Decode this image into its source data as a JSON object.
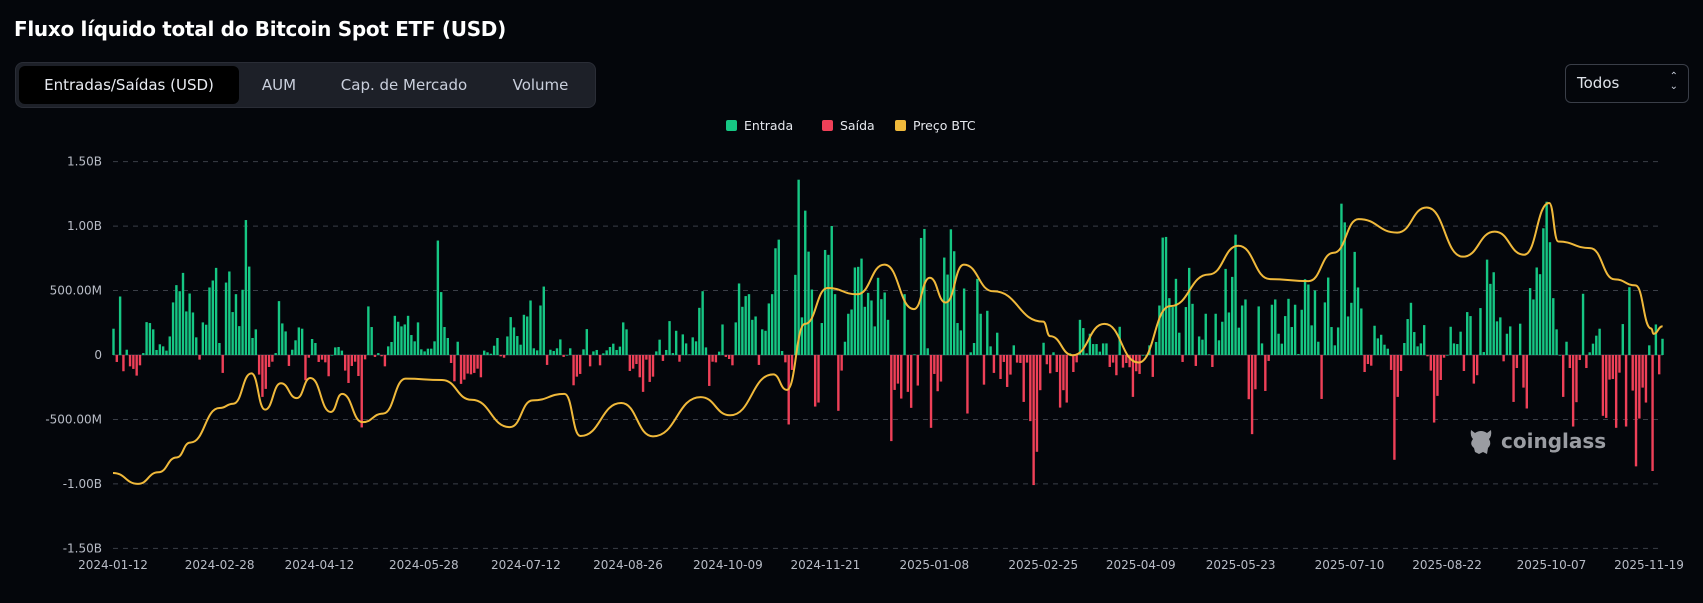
{
  "title": "Fluxo líquido total do Bitcoin Spot ETF (USD)",
  "tabs": [
    {
      "label": "Entradas/Saídas (USD)",
      "active": true
    },
    {
      "label": "AUM",
      "active": false
    },
    {
      "label": "Cap. de Mercado",
      "active": false
    },
    {
      "label": "Volume",
      "active": false
    }
  ],
  "range_select": {
    "value": "Todos",
    "icon": "updown-chevron-icon"
  },
  "watermark": "coinglass",
  "colors": {
    "inflow": "#16c784",
    "outflow": "#ef4058",
    "price": "#f0b93b",
    "background": "#04060b",
    "grid": "#3b3f48"
  },
  "chart_data": {
    "type": "bar+line",
    "title": "",
    "legend": {
      "placement": "top-center",
      "items": [
        "Entrada",
        "Saída",
        "Preço BTC"
      ]
    },
    "grid": true,
    "y_axis": {
      "unit": "USD",
      "ylim": [
        -1500000000,
        1500000000
      ],
      "ticks": [
        {
          "value": 1500000000,
          "label": "1.50B"
        },
        {
          "value": 1000000000,
          "label": "1.00B"
        },
        {
          "value": 500000000,
          "label": "500.00M"
        },
        {
          "value": 0,
          "label": "0"
        },
        {
          "value": -500000000,
          "label": "-500.00M"
        },
        {
          "value": -1000000000,
          "label": "-1.00B"
        },
        {
          "value": -1500000000,
          "label": "-1.50B"
        }
      ]
    },
    "x_axis": {
      "range": [
        "2024-01-11",
        "2025-11-25"
      ],
      "ticks": [
        "2024-01-12",
        "2024-02-28",
        "2024-04-12",
        "2024-05-28",
        "2024-07-12",
        "2024-08-26",
        "2024-10-09",
        "2024-11-21",
        "2025-01-08",
        "2025-02-25",
        "2025-04-09",
        "2025-05-23",
        "2025-07-10",
        "2025-08-22",
        "2025-10-07",
        "2025-11-19"
      ]
    },
    "flows_unit": "USD millions (daily, positive = Entrada, negative = Saída)",
    "flows": [
      204,
      -54,
      454,
      -126,
      41,
      -88,
      -108,
      -160,
      -80,
      15,
      255,
      248,
      199,
      39,
      83,
      67,
      34,
      144,
      408,
      542,
      495,
      637,
      338,
      477,
      330,
      137,
      -36,
      253,
      235,
      524,
      578,
      676,
      93,
      -139,
      562,
      648,
      333,
      472,
      224,
      506,
      1047,
      686,
      132,
      199,
      -152,
      -325,
      -263,
      -93,
      -52,
      15,
      418,
      245,
      183,
      -85,
      41,
      114,
      214,
      204,
      -196,
      -21,
      124,
      93,
      -54,
      -36,
      -57,
      -165,
      0,
      59,
      62,
      34,
      -121,
      -217,
      -85,
      -52,
      -163,
      -562,
      -34,
      377,
      217,
      -15,
      15,
      -10,
      -88,
      67,
      101,
      304,
      258,
      222,
      237,
      304,
      155,
      106,
      253,
      44,
      28,
      49,
      49,
      106,
      888,
      488,
      217,
      132,
      -62,
      -204,
      103,
      -224,
      -191,
      -144,
      -150,
      -139,
      -106,
      -173,
      34,
      21,
      10,
      72,
      132,
      -10,
      -21,
      144,
      294,
      214,
      147,
      80,
      312,
      299,
      423,
      52,
      36,
      384,
      531,
      -77,
      41,
      31,
      52,
      121,
      -15,
      0,
      52,
      -235,
      -168,
      -147,
      44,
      201,
      -88,
      28,
      39,
      -80,
      13,
      36,
      62,
      88,
      39,
      65,
      253,
      199,
      -124,
      -106,
      -70,
      -173,
      -286,
      -36,
      -209,
      -168,
      28,
      119,
      -46,
      39,
      263,
      15,
      188,
      -52,
      160,
      90,
      5,
      137,
      106,
      366,
      495,
      59,
      -240,
      -52,
      -57,
      26,
      237,
      -15,
      -31,
      -80,
      253,
      555,
      374,
      457,
      472,
      273,
      299,
      -77,
      199,
      188,
      400,
      472,
      828,
      895,
      31,
      -57,
      -539,
      -116,
      622,
      1360,
      292,
      1120,
      802,
      508,
      -400,
      -369,
      248,
      815,
      777,
      1001,
      472,
      -433,
      -121,
      103,
      320,
      353,
      679,
      684,
      748,
      374,
      482,
      423,
      222,
      599,
      433,
      485,
      273,
      -668,
      -271,
      -222,
      -338,
      472,
      -286,
      -410,
      5,
      -237,
      908,
      978,
      52,
      -565,
      -147,
      -281,
      -206,
      756,
      624,
      975,
      805,
      248,
      191,
      516,
      -454,
      21,
      93,
      591,
      320,
      -230,
      343,
      67,
      -139,
      173,
      -186,
      -54,
      -248,
      -152,
      75,
      -59,
      -62,
      -364,
      -59,
      -513,
      -1009,
      -751,
      -273,
      95,
      -72,
      -142,
      21,
      -132,
      -408,
      -273,
      -369,
      13,
      -132,
      -57,
      273,
      209,
      13,
      165,
      85,
      85,
      26,
      90,
      90,
      -93,
      -59,
      -157,
      219,
      -98,
      -62,
      -95,
      -325,
      -126,
      -147,
      0,
      0,
      75,
      -170,
      101,
      384,
      911,
      916,
      441,
      372,
      591,
      173,
      -54,
      372,
      676,
      397,
      -85,
      144,
      119,
      320,
      5,
      -93,
      320,
      114,
      258,
      668,
      330,
      606,
      934,
      212,
      384,
      431,
      -343,
      -614,
      -266,
      377,
      90,
      -279,
      -46,
      390,
      431,
      165,
      88,
      302,
      436,
      217,
      390,
      8,
      351,
      588,
      547,
      230,
      501,
      103,
      -341,
      408,
      601,
      217,
      75,
      214,
      1174,
      1029,
      299,
      405,
      800,
      524,
      361,
      -132,
      -70,
      -83,
      227,
      129,
      157,
      80,
      49,
      -116,
      -813,
      -325,
      -124,
      93,
      279,
      405,
      178,
      67,
      90,
      232,
      -10,
      -121,
      -524,
      -317,
      -194,
      -21,
      0,
      219,
      90,
      85,
      181,
      -124,
      333,
      302,
      -222,
      -157,
      364,
      23,
      740,
      552,
      642,
      261,
      292,
      -49,
      165,
      222,
      -364,
      -101,
      243,
      -253,
      -415,
      519,
      431,
      679,
      627,
      983,
      1189,
      875,
      441,
      199,
      0,
      -325,
      103,
      -101,
      -555,
      -366,
      -39,
      475,
      -101,
      21,
      88,
      150,
      204,
      -472,
      -488,
      -191,
      -186,
      -565,
      -137,
      240,
      -555,
      526,
      -276,
      -864,
      -493,
      -253,
      -369,
      75,
      -900,
      237,
      -150,
      126
    ],
    "btc_price": [
      [
        "2024-01-12",
        42800
      ],
      [
        "2024-01-23",
        39500
      ],
      [
        "2024-02-01",
        43000
      ],
      [
        "2024-02-09",
        47500
      ],
      [
        "2024-02-15",
        52000
      ],
      [
        "2024-02-28",
        62500
      ],
      [
        "2024-03-05",
        63800
      ],
      [
        "2024-03-13",
        73000
      ],
      [
        "2024-03-19",
        62000
      ],
      [
        "2024-03-26",
        70000
      ],
      [
        "2024-04-02",
        65500
      ],
      [
        "2024-04-08",
        71600
      ],
      [
        "2024-04-17",
        61300
      ],
      [
        "2024-04-22",
        66800
      ],
      [
        "2024-05-01",
        58200
      ],
      [
        "2024-05-10",
        60800
      ],
      [
        "2024-05-20",
        71400
      ],
      [
        "2024-06-05",
        71000
      ],
      [
        "2024-06-18",
        65000
      ],
      [
        "2024-07-05",
        56700
      ],
      [
        "2024-07-15",
        64800
      ],
      [
        "2024-07-29",
        66800
      ],
      [
        "2024-08-05",
        54000
      ],
      [
        "2024-08-23",
        64000
      ],
      [
        "2024-09-06",
        53900
      ],
      [
        "2024-09-27",
        65800
      ],
      [
        "2024-10-10",
        60300
      ],
      [
        "2024-10-29",
        72700
      ],
      [
        "2024-11-04",
        68000
      ],
      [
        "2024-11-12",
        88000
      ],
      [
        "2024-11-22",
        98900
      ],
      [
        "2024-12-05",
        97000
      ],
      [
        "2024-12-17",
        106000
      ],
      [
        "2024-12-30",
        92500
      ],
      [
        "2025-01-06",
        102000
      ],
      [
        "2025-01-13",
        94500
      ],
      [
        "2025-01-21",
        106000
      ],
      [
        "2025-02-03",
        97900
      ],
      [
        "2025-02-25",
        88700
      ],
      [
        "2025-02-28",
        84300
      ],
      [
        "2025-03-10",
        78500
      ],
      [
        "2025-03-24",
        88000
      ],
      [
        "2025-04-08",
        76300
      ],
      [
        "2025-04-22",
        93400
      ],
      [
        "2025-05-09",
        103000
      ],
      [
        "2025-05-22",
        111700
      ],
      [
        "2025-06-05",
        101600
      ],
      [
        "2025-06-22",
        101000
      ],
      [
        "2025-07-03",
        109600
      ],
      [
        "2025-07-14",
        119800
      ],
      [
        "2025-07-31",
        115700
      ],
      [
        "2025-08-13",
        123300
      ],
      [
        "2025-08-29",
        108400
      ],
      [
        "2025-09-12",
        116000
      ],
      [
        "2025-09-25",
        109000
      ],
      [
        "2025-10-06",
        124700
      ],
      [
        "2025-10-10",
        113000
      ],
      [
        "2025-10-24",
        111000
      ],
      [
        "2025-11-04",
        101500
      ],
      [
        "2025-11-13",
        99700
      ],
      [
        "2025-11-20",
        86600
      ],
      [
        "2025-11-21",
        85000
      ],
      [
        "2025-11-25",
        87300
      ]
    ]
  }
}
